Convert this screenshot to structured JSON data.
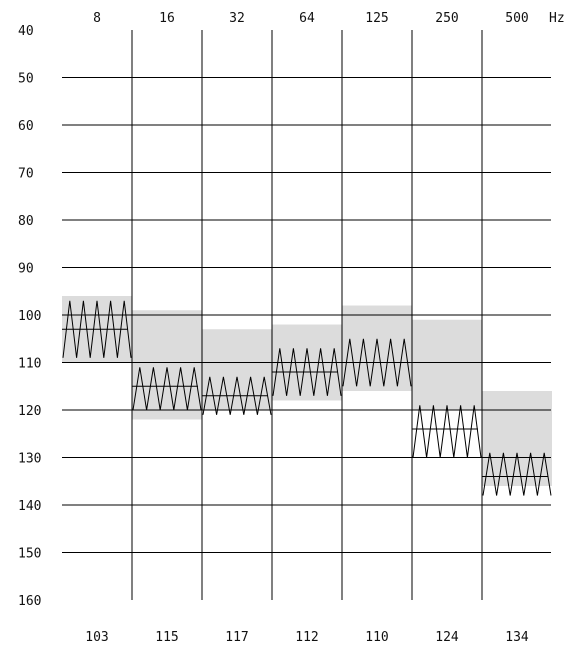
{
  "chart_data": {
    "type": "area",
    "title": "",
    "x_unit": "Hz",
    "categories": [
      "8",
      "16",
      "32",
      "64",
      "125",
      "250",
      "500"
    ],
    "ylim": [
      40,
      160
    ],
    "y_inverted": true,
    "y_ticks": [
      40,
      50,
      60,
      70,
      80,
      90,
      100,
      110,
      120,
      130,
      140,
      150,
      160
    ],
    "grid": true,
    "band_ranges": [
      [
        96,
        110
      ],
      [
        99,
        122
      ],
      [
        103,
        120
      ],
      [
        102,
        118
      ],
      [
        98,
        116
      ],
      [
        101,
        120
      ],
      [
        116,
        136
      ]
    ],
    "median_values": [
      103,
      115,
      117,
      112,
      110,
      124,
      134
    ],
    "zigzag_ranges": [
      [
        97,
        109
      ],
      [
        111,
        120
      ],
      [
        113,
        121
      ],
      [
        107,
        117
      ],
      [
        105,
        115
      ],
      [
        119,
        130
      ],
      [
        129,
        138
      ]
    ],
    "bottom_labels": [
      "103",
      "115",
      "117",
      "112",
      "110",
      "124",
      "134"
    ],
    "colors": {
      "band": "#dcdcdc",
      "line": "#000000",
      "grid": "#000000"
    }
  }
}
